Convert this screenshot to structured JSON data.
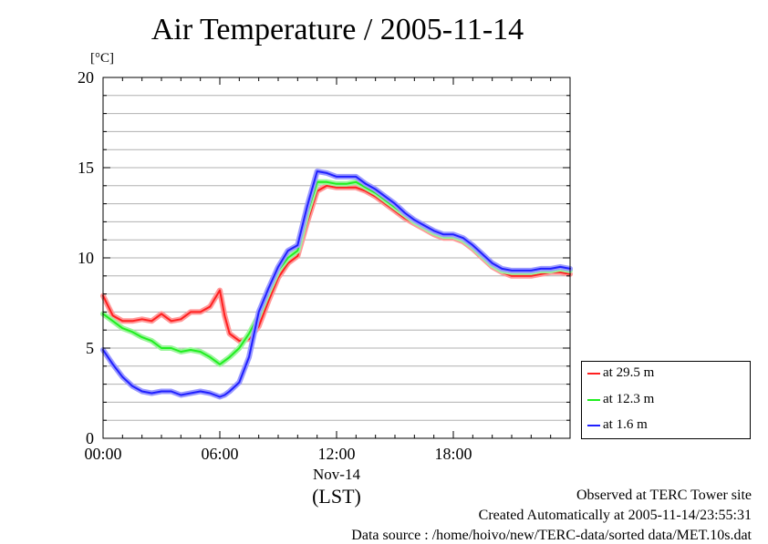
{
  "unit_label": "[°C]",
  "footer": {
    "line1": "Observed at TERC Tower site",
    "line2": "Created Automatically at 2005-11-14/23:55:31",
    "line3": "Data source : /home/hoivo/new/TERC-data/sorted  data/MET.10s.dat"
  },
  "colors": {
    "at_29_5": "#ff2020",
    "at_12_3": "#20ee20",
    "at_1_6": "#2020ff"
  },
  "chart_data": {
    "type": "line",
    "title": "Air Temperature / 2005-11-14",
    "ylabel": "[°C]",
    "xlabel": "(LST)",
    "x_tick_labels": [
      "00:00",
      "06:00",
      "12:00",
      "18:00"
    ],
    "x_ticks_hours": [
      0,
      6,
      12,
      18
    ],
    "x_date_label": "Nov-14",
    "xlim": [
      0,
      24
    ],
    "ylim": [
      0,
      20
    ],
    "y_ticks": [
      0,
      5,
      10,
      15,
      20
    ],
    "y_tick_labels": [
      "0",
      "5",
      "10",
      "15",
      "20"
    ],
    "grid": true,
    "legend_position": "bottom-right outside",
    "x_hours": [
      0,
      0.5,
      1,
      1.5,
      2,
      2.5,
      3,
      3.5,
      4,
      4.5,
      5,
      5.5,
      6,
      6.25,
      6.5,
      7,
      7.5,
      8,
      8.5,
      9,
      9.5,
      10,
      10.5,
      11,
      11.5,
      12,
      12.5,
      13,
      13.5,
      14,
      14.5,
      15,
      15.5,
      16,
      16.5,
      17,
      17.5,
      18,
      18.5,
      19,
      19.5,
      20,
      20.5,
      21,
      21.5,
      22,
      22.5,
      23,
      23.5,
      24
    ],
    "series": [
      {
        "name": "at 29.5 m",
        "color": "#ff2020",
        "values": [
          7.9,
          6.8,
          6.5,
          6.5,
          6.6,
          6.5,
          6.9,
          6.5,
          6.6,
          7.0,
          7.0,
          7.3,
          8.2,
          6.8,
          5.8,
          5.4,
          5.5,
          6.2,
          7.6,
          8.9,
          9.7,
          10.1,
          12.0,
          13.7,
          14.0,
          13.9,
          13.9,
          13.9,
          13.7,
          13.4,
          13.0,
          12.6,
          12.2,
          11.9,
          11.6,
          11.3,
          11.1,
          11.1,
          10.9,
          10.5,
          10.0,
          9.5,
          9.2,
          9.0,
          9.0,
          9.0,
          9.1,
          9.2,
          9.2,
          9.1
        ]
      },
      {
        "name": "at 12.3 m",
        "color": "#20ee20",
        "values": [
          6.9,
          6.5,
          6.1,
          5.9,
          5.6,
          5.4,
          5.0,
          5.0,
          4.8,
          4.9,
          4.8,
          4.5,
          4.1,
          4.3,
          4.5,
          5.0,
          5.8,
          6.8,
          8.1,
          9.3,
          10.0,
          10.4,
          12.5,
          14.2,
          14.2,
          14.1,
          14.1,
          14.2,
          13.9,
          13.6,
          13.2,
          12.8,
          12.4,
          12.0,
          11.7,
          11.4,
          11.2,
          11.2,
          11.0,
          10.6,
          10.1,
          9.6,
          9.3,
          9.2,
          9.2,
          9.2,
          9.3,
          9.3,
          9.4,
          9.3
        ]
      },
      {
        "name": "at 1.6 m",
        "color": "#2020ff",
        "values": [
          4.9,
          4.1,
          3.4,
          2.9,
          2.6,
          2.5,
          2.6,
          2.6,
          2.4,
          2.5,
          2.6,
          2.5,
          2.3,
          2.4,
          2.6,
          3.1,
          4.5,
          7.0,
          8.3,
          9.5,
          10.4,
          10.7,
          12.9,
          14.8,
          14.7,
          14.5,
          14.5,
          14.5,
          14.1,
          13.8,
          13.4,
          13.0,
          12.5,
          12.1,
          11.8,
          11.5,
          11.3,
          11.3,
          11.1,
          10.7,
          10.2,
          9.7,
          9.4,
          9.3,
          9.3,
          9.3,
          9.4,
          9.4,
          9.5,
          9.4
        ]
      }
    ]
  }
}
